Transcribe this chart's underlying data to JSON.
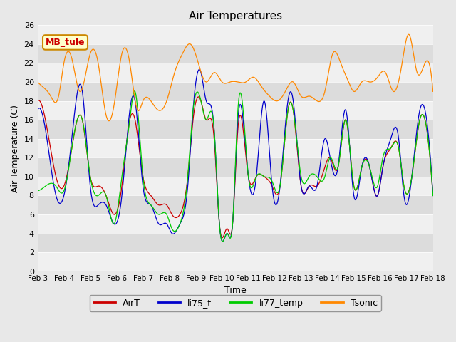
{
  "title": "Air Temperatures",
  "xlabel": "Time",
  "ylabel": "Air Temperature (C)",
  "xlim": [
    0,
    15
  ],
  "ylim": [
    0,
    26
  ],
  "yticks": [
    0,
    2,
    4,
    6,
    8,
    10,
    12,
    14,
    16,
    18,
    20,
    22,
    24,
    26
  ],
  "xtick_labels": [
    "Feb 3",
    "Feb 4",
    "Feb 5",
    "Feb 6",
    "Feb 7",
    "Feb 8",
    "Feb 9",
    "Feb 10",
    "Feb 11",
    "Feb 12",
    "Feb 13",
    "Feb 14",
    "Feb 15",
    "Feb 16",
    "Feb 17",
    "Feb 18"
  ],
  "legend_labels": [
    "AirT",
    "li75_t",
    "li77_temp",
    "Tsonic"
  ],
  "legend_colors": [
    "#cc0000",
    "#0000cc",
    "#00cc00",
    "#ff8800"
  ],
  "line_colors": {
    "AirT": "#cc0000",
    "li75_t": "#0000cc",
    "li77_temp": "#00cc00",
    "Tsonic": "#ff8800"
  },
  "annotation_text": "MB_tule",
  "annotation_color": "#cc0000",
  "annotation_bg": "#ffffcc",
  "annotation_border": "#cc8800",
  "bg_color": "#e8e8e8",
  "band_color_light": "#f5f5f5",
  "band_color_dark": "#dcdcdc"
}
